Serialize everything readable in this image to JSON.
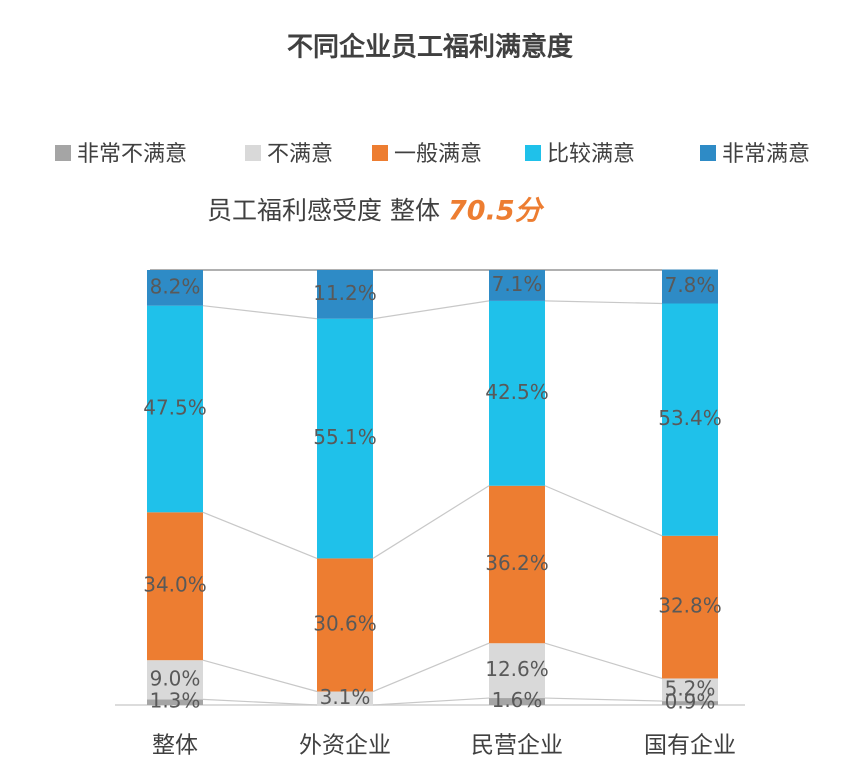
{
  "chart_data": {
    "type": "stacked_bar_percent",
    "title": "不同企业员工福利满意度",
    "subtitle": "员工福利感受度 整体",
    "annotation": "70.5分",
    "categories": [
      "整体",
      "外资企业",
      "民营企业",
      "国有企业"
    ],
    "ylim": [
      0,
      100
    ],
    "series": [
      {
        "name": "非常不满意",
        "color": "#a5a5a5",
        "values": [
          1.3,
          null,
          1.6,
          0.9
        ],
        "value_labels": [
          "1.3%",
          null,
          "1.6%",
          "0.9%"
        ]
      },
      {
        "name": "不满意",
        "color": "#d9d9d9",
        "values": [
          9.0,
          3.1,
          12.6,
          5.2
        ],
        "value_labels": [
          "9.0%",
          "3.1%",
          "12.6%",
          "5.2%"
        ]
      },
      {
        "name": "一般满意",
        "color": "#ed7d31",
        "values": [
          34.0,
          30.6,
          36.2,
          32.8
        ],
        "value_labels": [
          "34.0%",
          "30.6%",
          "36.2%",
          "32.8%"
        ]
      },
      {
        "name": "比较满意",
        "color": "#1fc1ea",
        "values": [
          47.5,
          55.1,
          42.5,
          53.4
        ],
        "value_labels": [
          "47.5%",
          "55.1%",
          "42.5%",
          "53.4%"
        ]
      },
      {
        "name": "非常满意",
        "color": "#2e8bc6",
        "values": [
          8.2,
          11.2,
          7.1,
          7.8
        ],
        "value_labels": [
          "8.2%",
          "11.2%",
          "7.1%",
          "7.8%"
        ]
      }
    ]
  }
}
